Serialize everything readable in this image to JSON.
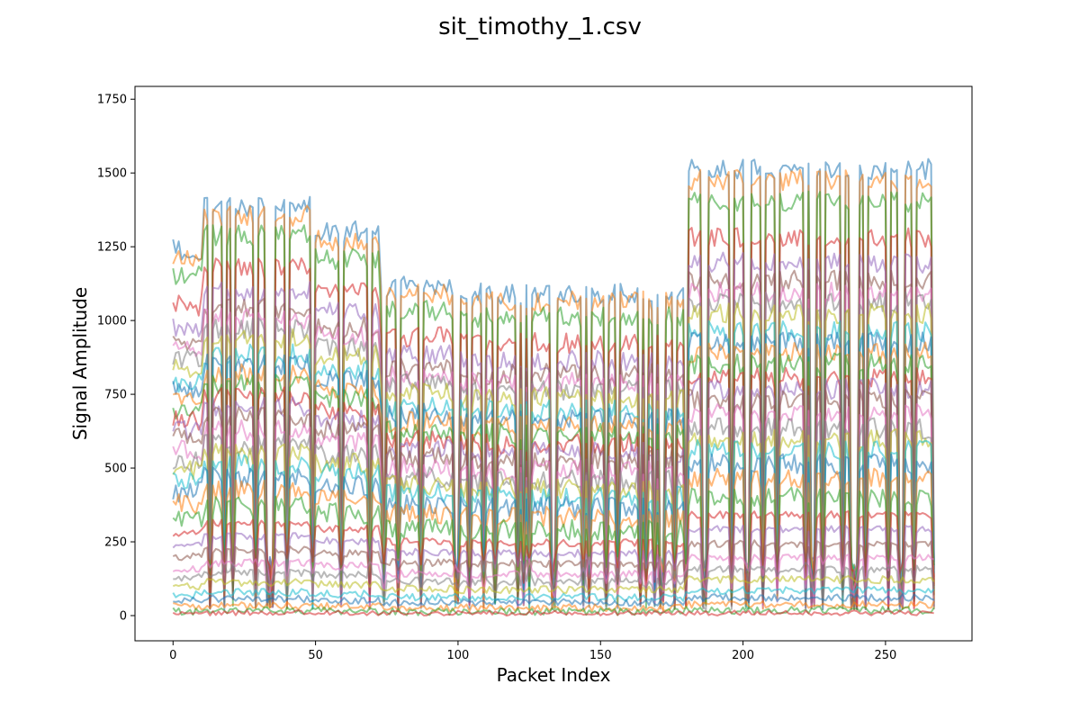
{
  "chart_data": {
    "type": "line",
    "title": "sit_timothy_1.csv",
    "xlabel": "Packet Index",
    "ylabel": "Signal Amplitude",
    "xlim": [
      -13.35,
      280.35
    ],
    "ylim": [
      -85.4,
      1793.4
    ],
    "x_ticks": [
      0,
      50,
      100,
      150,
      200,
      250
    ],
    "y_ticks": [
      0,
      250,
      500,
      750,
      1000,
      1250,
      1500,
      1750
    ],
    "x_tick_labels": [
      "0",
      "50",
      "100",
      "150",
      "200",
      "250"
    ],
    "y_tick_labels": [
      "0",
      "250",
      "500",
      "750",
      "1000",
      "1250",
      "1500",
      "1750"
    ],
    "x_range": [
      0,
      267
    ],
    "grid": false,
    "legend": "none",
    "line_alpha": 0.55,
    "series_colors": [
      "#1f77b4",
      "#ff7f0e",
      "#2ca02c",
      "#d62728",
      "#9467bd",
      "#8c564b",
      "#e377c2",
      "#7f7f7f",
      "#bcbd22",
      "#17becf"
    ],
    "series_levels": [
      1240,
      1210,
      1150,
      1050,
      980,
      930,
      900,
      870,
      840,
      790,
      760,
      730,
      700,
      660,
      630,
      600,
      560,
      520,
      490,
      460,
      420,
      380,
      330,
      280,
      240,
      200,
      160,
      130,
      100,
      70,
      50,
      30,
      15,
      5
    ],
    "segments": [
      {
        "x": [
          0,
          10
        ],
        "scale": 1.0
      },
      {
        "x": [
          11,
          49
        ],
        "scale": 1.12
      },
      {
        "x": [
          50,
          72
        ],
        "scale": 1.05
      },
      {
        "x": [
          73,
          97
        ],
        "scale": 0.9
      },
      {
        "x": [
          98,
          179
        ],
        "scale": 0.88
      },
      {
        "x": [
          180,
          267
        ],
        "scale": 1.22
      }
    ],
    "peak_max": 1707
  }
}
